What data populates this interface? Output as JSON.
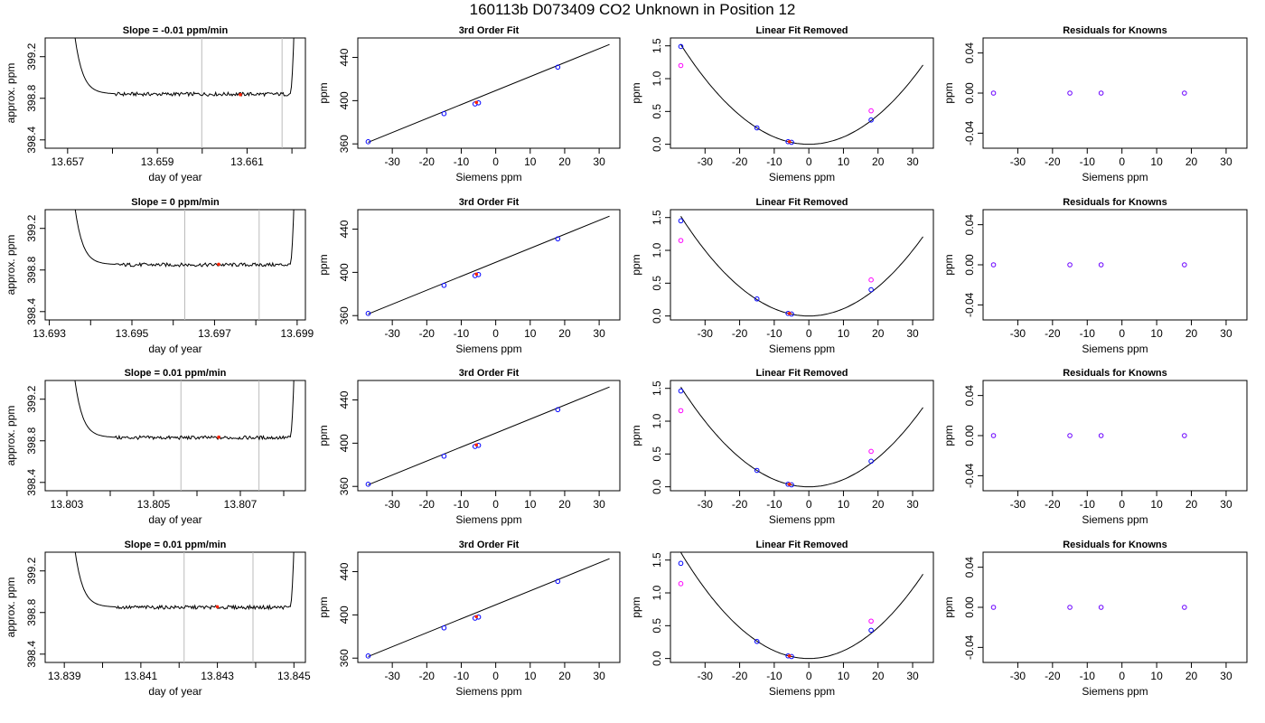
{
  "page_title": "160113b     D073409   CO2 Unknown in Position  12",
  "colors": {
    "axis": "#000000",
    "trace": "#000000",
    "vline": "#bbbbbb",
    "point_blue": "#0000ff",
    "point_red": "#ff2200",
    "point_magenta": "#ff00ff",
    "point_purple": "#6a00ff"
  },
  "chart_data": [
    {
      "type": "line",
      "row": 0,
      "title": "Slope =  -0.01  ppm/min",
      "xlabel": "day of year",
      "ylabel": "approx. ppm",
      "xlim": [
        13.6565,
        13.6623
      ],
      "ylim": [
        398.32,
        399.38
      ],
      "xticks": [
        13.657,
        13.658,
        13.659,
        13.66,
        13.661,
        13.662
      ],
      "xtick_labels": [
        "13.657",
        "",
        "13.659",
        "",
        "13.661",
        ""
      ],
      "yticks": [
        398.4,
        398.8,
        399.2
      ],
      "ytick_labels": [
        "398.4",
        "398.8",
        "399.2"
      ],
      "vlines": [
        13.65999,
        13.66178
      ],
      "baseline": 398.84,
      "marker": [
        13.66085,
        398.835
      ]
    },
    {
      "type": "scatter",
      "row": 0,
      "title": "3rd Order Fit",
      "xlabel": "Siemens ppm",
      "ylabel": "ppm",
      "xlim": [
        -40,
        36
      ],
      "ylim": [
        356,
        458
      ],
      "xticks": [
        -30,
        -20,
        -10,
        0,
        10,
        20,
        30
      ],
      "yticks": [
        360,
        400,
        440
      ],
      "points": [
        [
          -37,
          362
        ],
        [
          -15,
          388
        ],
        [
          -6,
          397
        ],
        [
          -5,
          398
        ],
        [
          18,
          431
        ]
      ],
      "fit_line": [
        [
          -37,
          361.5
        ],
        [
          33,
          452
        ]
      ],
      "marker": [
        -5.6,
        398.4
      ]
    },
    {
      "type": "scatter",
      "row": 0,
      "title": "Linear Fit Removed",
      "xlabel": "Siemens ppm",
      "ylabel": "ppm",
      "xlim": [
        -40,
        36
      ],
      "ylim": [
        -0.06,
        1.62
      ],
      "xticks": [
        -30,
        -20,
        -10,
        0,
        10,
        20,
        30
      ],
      "yticks": [
        0.0,
        0.5,
        1.0,
        1.5
      ],
      "yticklabels": [
        "0.0",
        "0.5",
        "1.0",
        "1.5"
      ],
      "curve_coef": 0.00111,
      "points": [
        [
          -37,
          1.49
        ],
        [
          -15,
          0.25
        ],
        [
          -6,
          0.04
        ],
        [
          -5,
          0.03
        ],
        [
          18,
          0.37
        ]
      ],
      "open_points": [
        [
          -37,
          1.2
        ],
        [
          18,
          0.51
        ]
      ],
      "marker": [
        -5.6,
        0.04
      ]
    },
    {
      "type": "scatter",
      "row": 0,
      "title": "Residuals for Knowns",
      "xlabel": "Siemens ppm",
      "ylabel": "ppm",
      "xlim": [
        -40,
        36
      ],
      "ylim": [
        -0.055,
        0.055
      ],
      "xticks": [
        -30,
        -20,
        -10,
        0,
        10,
        20,
        30
      ],
      "yticks": [
        -0.04,
        0.0,
        0.04
      ],
      "yticklabels": [
        "-0.04",
        "0.00",
        "0.04"
      ],
      "points": [
        [
          -37,
          0
        ],
        [
          -15,
          0
        ],
        [
          -6,
          0
        ],
        [
          18,
          0
        ]
      ]
    },
    {
      "type": "line",
      "row": 1,
      "title": "Slope =  0  ppm/min",
      "xlabel": "day of year",
      "ylabel": "approx. ppm",
      "xlim": [
        13.6929,
        13.6992
      ],
      "ylim": [
        398.32,
        399.38
      ],
      "xticks": [
        13.693,
        13.694,
        13.695,
        13.696,
        13.697,
        13.698,
        13.699
      ],
      "xtick_labels": [
        "13.693",
        "",
        "13.695",
        "",
        "13.697",
        "",
        "13.699"
      ],
      "yticks": [
        398.4,
        398.8,
        399.2
      ],
      "ytick_labels": [
        "398.4",
        "398.8",
        "399.2"
      ],
      "vlines": [
        13.69628,
        13.69808
      ],
      "baseline": 398.85,
      "marker": [
        13.6971,
        398.855
      ]
    },
    {
      "type": "scatter",
      "row": 1,
      "title": "3rd Order Fit",
      "xlabel": "Siemens ppm",
      "ylabel": "ppm",
      "xlim": [
        -40,
        36
      ],
      "ylim": [
        356,
        458
      ],
      "xticks": [
        -30,
        -20,
        -10,
        0,
        10,
        20,
        30
      ],
      "yticks": [
        360,
        400,
        440
      ],
      "points": [
        [
          -37,
          362
        ],
        [
          -15,
          388
        ],
        [
          -6,
          397
        ],
        [
          -5,
          398
        ],
        [
          18,
          431
        ]
      ],
      "fit_line": [
        [
          -37,
          361.5
        ],
        [
          33,
          452
        ]
      ],
      "marker": [
        -5.6,
        398.4
      ]
    },
    {
      "type": "scatter",
      "row": 1,
      "title": "Linear Fit Removed",
      "xlabel": "Siemens ppm",
      "ylabel": "ppm",
      "xlim": [
        -40,
        36
      ],
      "ylim": [
        -0.06,
        1.62
      ],
      "xticks": [
        -30,
        -20,
        -10,
        0,
        10,
        20,
        30
      ],
      "yticks": [
        0.0,
        0.5,
        1.0,
        1.5
      ],
      "yticklabels": [
        "0.0",
        "0.5",
        "1.0",
        "1.5"
      ],
      "curve_coef": 0.00111,
      "points": [
        [
          -37,
          1.45
        ],
        [
          -15,
          0.26
        ],
        [
          -6,
          0.04
        ],
        [
          -5,
          0.03
        ],
        [
          18,
          0.4
        ]
      ],
      "open_points": [
        [
          -37,
          1.15
        ],
        [
          18,
          0.55
        ]
      ],
      "marker": [
        -5.6,
        0.04
      ]
    },
    {
      "type": "scatter",
      "row": 1,
      "title": "Residuals for Knowns",
      "xlabel": "Siemens ppm",
      "ylabel": "ppm",
      "xlim": [
        -40,
        36
      ],
      "ylim": [
        -0.055,
        0.055
      ],
      "xticks": [
        -30,
        -20,
        -10,
        0,
        10,
        20,
        30
      ],
      "yticks": [
        -0.04,
        0.0,
        0.04
      ],
      "yticklabels": [
        "-0.04",
        "0.00",
        "0.04"
      ],
      "points": [
        [
          -37,
          0
        ],
        [
          -15,
          0
        ],
        [
          -6,
          0
        ],
        [
          18,
          0
        ]
      ]
    },
    {
      "type": "line",
      "row": 2,
      "title": "Slope =  0.01  ppm/min",
      "xlabel": "day of year",
      "ylabel": "approx. ppm",
      "xlim": [
        13.8025,
        13.8085
      ],
      "ylim": [
        398.32,
        399.38
      ],
      "xticks": [
        13.803,
        13.804,
        13.805,
        13.806,
        13.807,
        13.808
      ],
      "xtick_labels": [
        "13.803",
        "",
        "13.805",
        "",
        "13.807",
        ""
      ],
      "yticks": [
        398.4,
        398.8,
        399.2
      ],
      "ytick_labels": [
        "398.4",
        "398.8",
        "399.2"
      ],
      "vlines": [
        13.80563,
        13.80743
      ],
      "baseline": 398.83,
      "marker": [
        13.8065,
        398.835
      ]
    },
    {
      "type": "scatter",
      "row": 2,
      "title": "3rd Order Fit",
      "xlabel": "Siemens ppm",
      "ylabel": "ppm",
      "xlim": [
        -40,
        36
      ],
      "ylim": [
        356,
        458
      ],
      "xticks": [
        -30,
        -20,
        -10,
        0,
        10,
        20,
        30
      ],
      "yticks": [
        360,
        400,
        440
      ],
      "points": [
        [
          -37,
          362
        ],
        [
          -15,
          388
        ],
        [
          -6,
          397
        ],
        [
          -5,
          398
        ],
        [
          18,
          431
        ]
      ],
      "fit_line": [
        [
          -37,
          361.5
        ],
        [
          33,
          452
        ]
      ],
      "marker": [
        -5.6,
        398.4
      ]
    },
    {
      "type": "scatter",
      "row": 2,
      "title": "Linear Fit Removed",
      "xlabel": "Siemens ppm",
      "ylabel": "ppm",
      "xlim": [
        -40,
        36
      ],
      "ylim": [
        -0.06,
        1.62
      ],
      "xticks": [
        -30,
        -20,
        -10,
        0,
        10,
        20,
        30
      ],
      "yticks": [
        0.0,
        0.5,
        1.0,
        1.5
      ],
      "yticklabels": [
        "0.0",
        "0.5",
        "1.0",
        "1.5"
      ],
      "curve_coef": 0.00111,
      "points": [
        [
          -37,
          1.46
        ],
        [
          -15,
          0.25
        ],
        [
          -6,
          0.04
        ],
        [
          -5,
          0.03
        ],
        [
          18,
          0.39
        ]
      ],
      "open_points": [
        [
          -37,
          1.16
        ],
        [
          18,
          0.54
        ]
      ],
      "marker": [
        -5.6,
        0.04
      ]
    },
    {
      "type": "scatter",
      "row": 2,
      "title": "Residuals for Knowns",
      "xlabel": "Siemens ppm",
      "ylabel": "ppm",
      "xlim": [
        -40,
        36
      ],
      "ylim": [
        -0.055,
        0.055
      ],
      "xticks": [
        -30,
        -20,
        -10,
        0,
        10,
        20,
        30
      ],
      "yticks": [
        -0.04,
        0.0,
        0.04
      ],
      "yticklabels": [
        "-0.04",
        "0.00",
        "0.04"
      ],
      "points": [
        [
          -37,
          0
        ],
        [
          -15,
          0
        ],
        [
          -6,
          0
        ],
        [
          18,
          0
        ]
      ]
    },
    {
      "type": "line",
      "row": 3,
      "title": "Slope =  0.01  ppm/min",
      "xlabel": "day of year",
      "ylabel": "approx. ppm",
      "xlim": [
        13.8385,
        13.8453
      ],
      "ylim": [
        398.32,
        399.38
      ],
      "xticks": [
        13.839,
        13.84,
        13.841,
        13.842,
        13.843,
        13.844,
        13.845
      ],
      "xtick_labels": [
        "13.839",
        "",
        "13.841",
        "",
        "13.843",
        "",
        "13.845"
      ],
      "yticks": [
        398.4,
        398.8,
        399.2
      ],
      "ytick_labels": [
        "398.4",
        "398.8",
        "399.2"
      ],
      "vlines": [
        13.84213,
        13.84393
      ],
      "baseline": 398.85,
      "marker": [
        13.843,
        398.855
      ]
    },
    {
      "type": "scatter",
      "row": 3,
      "title": "3rd Order Fit",
      "xlabel": "Siemens ppm",
      "ylabel": "ppm",
      "xlim": [
        -40,
        36
      ],
      "ylim": [
        356,
        458
      ],
      "xticks": [
        -30,
        -20,
        -10,
        0,
        10,
        20,
        30
      ],
      "yticks": [
        360,
        400,
        440
      ],
      "points": [
        [
          -37,
          362
        ],
        [
          -15,
          388
        ],
        [
          -6,
          397
        ],
        [
          -5,
          398
        ],
        [
          18,
          431
        ]
      ],
      "fit_line": [
        [
          -37,
          361.5
        ],
        [
          33,
          452
        ]
      ],
      "marker": [
        -5.6,
        398.4
      ]
    },
    {
      "type": "scatter",
      "row": 3,
      "title": "Linear Fit Removed",
      "xlabel": "Siemens ppm",
      "ylabel": "ppm",
      "xlim": [
        -40,
        36
      ],
      "ylim": [
        -0.06,
        1.62
      ],
      "xticks": [
        -30,
        -20,
        -10,
        0,
        10,
        20,
        30
      ],
      "yticks": [
        0.0,
        0.5,
        1.0,
        1.5
      ],
      "yticklabels": [
        "0.0",
        "0.5",
        "1.0",
        "1.5"
      ],
      "curve_coef": 0.00118,
      "points": [
        [
          -37,
          1.45
        ],
        [
          -15,
          0.26
        ],
        [
          -6,
          0.04
        ],
        [
          -5,
          0.03
        ],
        [
          18,
          0.43
        ]
      ],
      "open_points": [
        [
          -37,
          1.14
        ],
        [
          18,
          0.57
        ]
      ],
      "marker": [
        -5.6,
        0.04
      ]
    },
    {
      "type": "scatter",
      "row": 3,
      "title": "Residuals for Knowns",
      "xlabel": "Siemens ppm",
      "ylabel": "ppm",
      "xlim": [
        -40,
        36
      ],
      "ylim": [
        -0.055,
        0.055
      ],
      "xticks": [
        -30,
        -20,
        -10,
        0,
        10,
        20,
        30
      ],
      "yticks": [
        -0.04,
        0.0,
        0.04
      ],
      "yticklabels": [
        "-0.04",
        "0.00",
        "0.04"
      ],
      "points": [
        [
          -37,
          0
        ],
        [
          -15,
          0
        ],
        [
          -6,
          0
        ],
        [
          18,
          0
        ]
      ]
    }
  ]
}
